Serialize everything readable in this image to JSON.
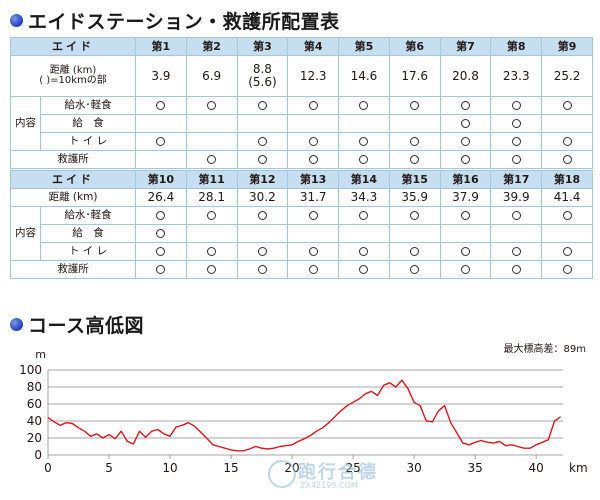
{
  "aid_section": {
    "title": "エイドステーション・救護所配置表"
  },
  "table1": {
    "header_label": "エイド",
    "stations": [
      "第1",
      "第2",
      "第3",
      "第4",
      "第5",
      "第6",
      "第7",
      "第8",
      "第9"
    ],
    "distance_label_1": "距離 (km)",
    "distance_label_2": "( )=10kmの部",
    "distances": [
      {
        "main": "3.9",
        "sub": ""
      },
      {
        "main": "6.9",
        "sub": ""
      },
      {
        "main": "8.8",
        "sub": "(5.6)"
      },
      {
        "main": "12.3",
        "sub": ""
      },
      {
        "main": "14.6",
        "sub": ""
      },
      {
        "main": "17.6",
        "sub": ""
      },
      {
        "main": "20.8",
        "sub": ""
      },
      {
        "main": "23.3",
        "sub": ""
      },
      {
        "main": "25.2",
        "sub": ""
      }
    ],
    "category_label": "内容",
    "rows": [
      {
        "label": "給水･軽食",
        "marks": [
          "○",
          "○",
          "○",
          "○",
          "○",
          "○",
          "○",
          "○",
          "○"
        ]
      },
      {
        "label": "給　食",
        "marks": [
          "",
          "",
          "",
          "",
          "",
          "",
          "○",
          "○",
          ""
        ]
      },
      {
        "label": "ト イ レ",
        "marks": [
          "○",
          "",
          "○",
          "○",
          "○",
          "○",
          "○",
          "○",
          "○"
        ]
      }
    ],
    "aid_station_label": "救護所",
    "aid_station_marks": [
      "",
      "○",
      "○",
      "○",
      "○",
      "○",
      "○",
      "○",
      "○"
    ]
  },
  "table2": {
    "stations": [
      "第10",
      "第11",
      "第12",
      "第13",
      "第14",
      "第15",
      "第16",
      "第17",
      "第18"
    ],
    "distance_label": "距離 (km)",
    "distances": [
      "26.4",
      "28.1",
      "30.2",
      "31.7",
      "34.3",
      "35.9",
      "37.9",
      "39.9",
      "41.4"
    ],
    "category_label": "内容",
    "rows": [
      {
        "label": "給水･軽食",
        "marks": [
          "○",
          "○",
          "○",
          "○",
          "○",
          "○",
          "○",
          "○",
          "○"
        ]
      },
      {
        "label": "給　食",
        "marks": [
          "○",
          "",
          "",
          "",
          "",
          "",
          "",
          "",
          ""
        ]
      },
      {
        "label": "ト イ レ",
        "marks": [
          "○",
          "○",
          "○",
          "○",
          "○",
          "○",
          "○",
          "○",
          "○"
        ]
      }
    ],
    "aid_station_label": "救護所",
    "aid_station_marks": [
      "○",
      "○",
      "○",
      "○",
      "○",
      "○",
      "○",
      "○",
      "○"
    ]
  },
  "course_section": {
    "title": "コース高低図",
    "elevation_note": "最大標高差：89m"
  },
  "watermark": {
    "text": "跑行合德",
    "sub": "ZX42195.COM"
  },
  "chart_data": {
    "type": "line",
    "title": "",
    "xlabel": "km",
    "ylabel": "m",
    "xlim": [
      0,
      42.2
    ],
    "ylim": [
      0,
      100
    ],
    "xticks": [
      0,
      5,
      10,
      15,
      20,
      25,
      30,
      35,
      40
    ],
    "yticks": [
      0,
      20,
      40,
      60,
      80,
      100
    ],
    "grid": true,
    "color": "#d71920",
    "series": [
      {
        "name": "",
        "x": [
          0,
          0.5,
          1,
          1.5,
          2,
          2.5,
          3,
          3.5,
          4,
          4.5,
          5,
          5.5,
          6,
          6.5,
          7,
          7.5,
          8,
          8.5,
          9,
          9.5,
          10,
          10.5,
          11,
          11.5,
          12,
          12.5,
          13,
          13.5,
          14,
          14.5,
          15,
          15.5,
          16,
          16.5,
          17,
          17.5,
          18,
          18.5,
          19,
          19.5,
          20,
          20.5,
          21,
          21.5,
          22,
          22.5,
          23,
          23.5,
          24,
          24.5,
          25,
          25.5,
          26,
          26.5,
          27,
          27.5,
          28,
          28.5,
          29,
          29.5,
          30,
          30.5,
          31,
          31.5,
          32,
          32.5,
          33,
          33.5,
          34,
          34.5,
          35,
          35.5,
          36,
          36.5,
          37,
          37.5,
          38,
          38.5,
          39,
          39.5,
          40,
          40.5,
          41,
          41.5,
          42
        ],
        "y": [
          44,
          39,
          35,
          38,
          37,
          32,
          28,
          22,
          25,
          20,
          24,
          19,
          28,
          16,
          13,
          28,
          21,
          28,
          30,
          25,
          22,
          33,
          35,
          38,
          34,
          27,
          20,
          12,
          10,
          8,
          6,
          5,
          5,
          7,
          10,
          8,
          7,
          8,
          10,
          11,
          12,
          16,
          19,
          23,
          28,
          32,
          38,
          45,
          52,
          58,
          62,
          66,
          72,
          75,
          70,
          82,
          85,
          80,
          88,
          78,
          62,
          58,
          40,
          39,
          52,
          58,
          38,
          26,
          14,
          12,
          15,
          17,
          15,
          14,
          16,
          11,
          12,
          10,
          8,
          8,
          12,
          15,
          18,
          40,
          45
        ]
      }
    ]
  }
}
